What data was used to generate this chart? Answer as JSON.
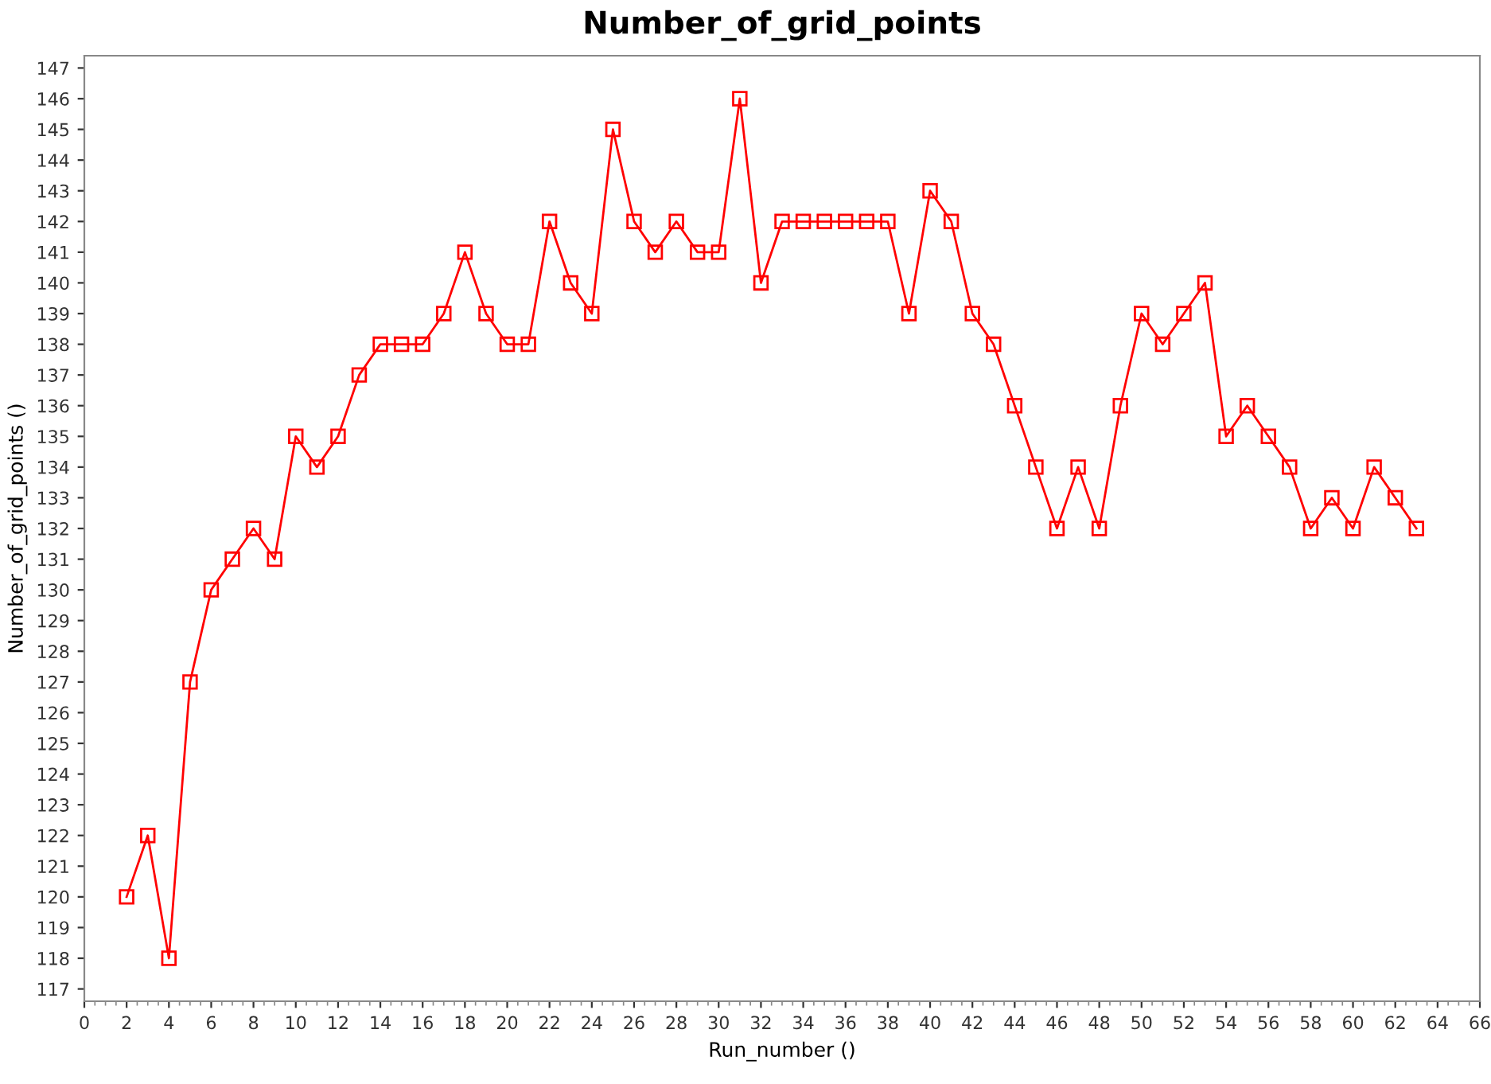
{
  "chart_data": {
    "type": "line",
    "title": "Number_of_grid_points",
    "xlabel": "Run_number ()",
    "ylabel": "Number_of_grid_points ()",
    "x": [
      2,
      3,
      4,
      5,
      6,
      7,
      8,
      9,
      10,
      11,
      12,
      13,
      14,
      15,
      16,
      17,
      18,
      19,
      20,
      21,
      22,
      23,
      24,
      25,
      26,
      27,
      28,
      29,
      30,
      31,
      32,
      33,
      34,
      35,
      36,
      37,
      38,
      39,
      40,
      41,
      42,
      43,
      44,
      45,
      46,
      47,
      48,
      49,
      50,
      51,
      52,
      53,
      54,
      55,
      56,
      57,
      58,
      59,
      60,
      61,
      62,
      63
    ],
    "series": [
      {
        "color": "#ff0000",
        "values": [
          120,
          122,
          118,
          127,
          130,
          131,
          132,
          131,
          135,
          134,
          135,
          137,
          138,
          138,
          138,
          139,
          141,
          139,
          138,
          138,
          142,
          140,
          139,
          145,
          142,
          141,
          142,
          141,
          141,
          146,
          140,
          142,
          142,
          142,
          142,
          142,
          142,
          139,
          143,
          142,
          139,
          138,
          136,
          134,
          132,
          134,
          132,
          136,
          139,
          138,
          139,
          140,
          135,
          136,
          135,
          134,
          132,
          133,
          132,
          134,
          133,
          132
        ]
      }
    ],
    "xlim": [
      0,
      66
    ],
    "xticks": [
      0,
      2,
      4,
      6,
      8,
      10,
      12,
      14,
      16,
      18,
      20,
      22,
      24,
      26,
      28,
      30,
      32,
      34,
      36,
      38,
      40,
      42,
      44,
      46,
      48,
      50,
      52,
      54,
      56,
      58,
      60,
      62,
      64,
      66
    ],
    "ylim": [
      116.6,
      147.4
    ],
    "yticks": [
      117,
      118,
      119,
      120,
      121,
      122,
      123,
      124,
      125,
      126,
      127,
      128,
      129,
      130,
      131,
      132,
      133,
      134,
      135,
      136,
      137,
      138,
      139,
      140,
      141,
      142,
      143,
      144,
      145,
      146,
      147
    ],
    "grid": false,
    "legend": false,
    "marker": "square",
    "line_style": "solid"
  }
}
